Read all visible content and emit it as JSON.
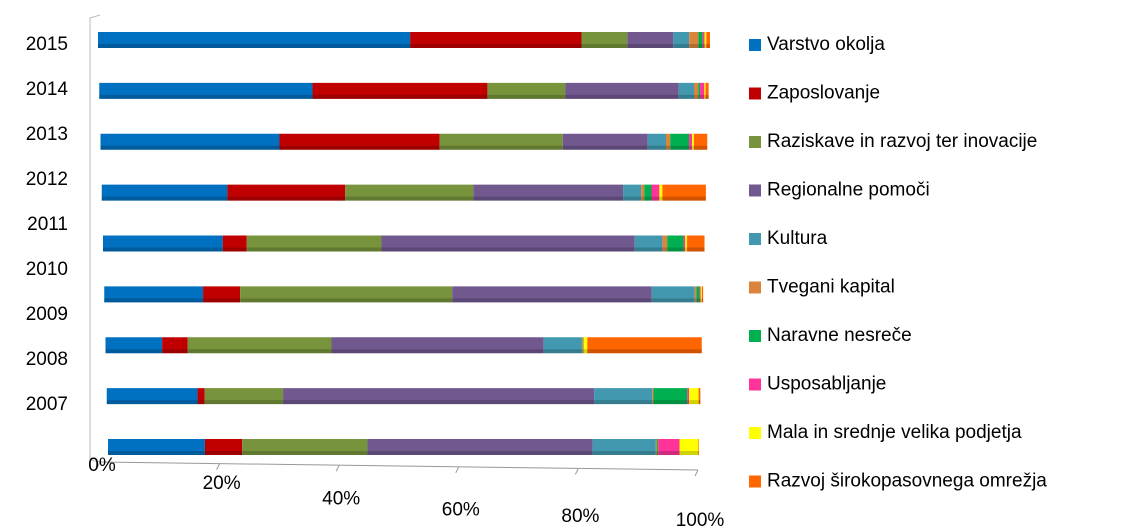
{
  "chart_data": {
    "type": "stacked_bar_percent_horizontal",
    "categories": [
      "2007",
      "2008",
      "2009",
      "2010",
      "2011",
      "2012",
      "2013",
      "2014",
      "2015"
    ],
    "series": [
      {
        "name": "Varstvo okolja",
        "color": "#0070c0",
        "values": [
          16.4,
          15.3,
          9.5,
          16.5,
          19.9,
          20.8,
          29.5,
          35,
          51
        ]
      },
      {
        "name": "Zaposlovanje",
        "color": "#c00000",
        "values": [
          6.3,
          1.2,
          4.3,
          6.2,
          4,
          19.5,
          26.4,
          28.7,
          28
        ]
      },
      {
        "name": "Raziskave in razvoj ter inovacije",
        "color": "#77933c",
        "values": [
          21.2,
          13.2,
          24.1,
          35.4,
          22.4,
          21.2,
          20.3,
          12.8,
          7.5
        ]
      },
      {
        "name": "Regionalne pomoči",
        "color": "#71588f",
        "values": [
          38.1,
          52.4,
          35.6,
          33.3,
          42.1,
          24.8,
          14,
          18.6,
          7.5
        ]
      },
      {
        "name": "Kultura",
        "color": "#4198af",
        "values": [
          10.7,
          9.8,
          6.4,
          7.2,
          4.6,
          3,
          3,
          2.5,
          2.6
        ]
      },
      {
        "name": "Tvegani kapital",
        "color": "#db843d",
        "values": [
          0.2,
          0.2,
          0.2,
          0.3,
          0.8,
          0.5,
          0.7,
          0.7,
          1.5
        ]
      },
      {
        "name": "Naravne nesreče",
        "color": "#00b050",
        "values": [
          0.2,
          5.7,
          0.1,
          0.5,
          2.7,
          1.2,
          3.1,
          0.3,
          0.7
        ]
      },
      {
        "name": "Usposabljanje",
        "color": "#ff3399",
        "values": [
          3.6,
          0.3,
          0,
          0.2,
          0.3,
          1.3,
          0.5,
          0.7,
          0.3
        ]
      },
      {
        "name": "Mala in srednje velika podjetja",
        "color": "#ffff00",
        "values": [
          3.2,
          1.6,
          0.6,
          0.2,
          0.3,
          0.5,
          0.3,
          0.2,
          0.3
        ]
      },
      {
        "name": "Razvoj širokopasovnega omrežja",
        "color": "#ff6600",
        "values": [
          0.1,
          0.3,
          19.2,
          0.2,
          2.9,
          7.2,
          2.2,
          0.5,
          0.6
        ]
      }
    ],
    "xlim": [
      0,
      100
    ],
    "xticks": [
      {
        "value": 0,
        "label": "0%"
      },
      {
        "value": 20,
        "label": "20%"
      },
      {
        "value": 40,
        "label": "40%"
      },
      {
        "value": 60,
        "label": "60%"
      },
      {
        "value": 80,
        "label": "80%"
      },
      {
        "value": 100,
        "label": "100%"
      }
    ],
    "legend": "right"
  }
}
